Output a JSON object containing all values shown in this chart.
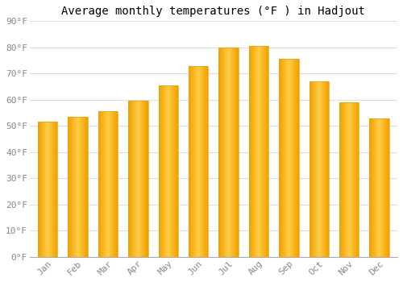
{
  "title": "Average monthly temperatures (°F ) in Hadjout",
  "months": [
    "Jan",
    "Feb",
    "Mar",
    "Apr",
    "May",
    "Jun",
    "Jul",
    "Aug",
    "Sep",
    "Oct",
    "Nov",
    "Dec"
  ],
  "values": [
    51.5,
    53.5,
    55.5,
    59.5,
    65.5,
    73,
    80,
    80.5,
    75.5,
    67,
    59,
    53
  ],
  "bar_color_center": "#FFCC44",
  "bar_color_edge": "#F0A000",
  "background_color": "#ffffff",
  "grid_color": "#dddddd",
  "tick_color": "#888888",
  "ylim": [
    0,
    90
  ],
  "ytick_step": 10,
  "title_fontsize": 10,
  "tick_fontsize": 8,
  "bar_width": 0.65
}
